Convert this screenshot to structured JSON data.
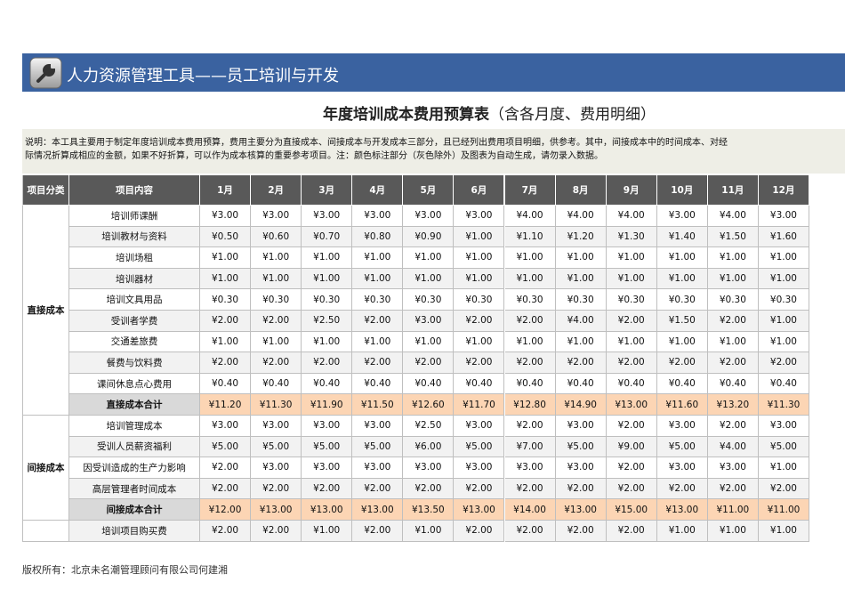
{
  "header": {
    "title": "人力资源管理工具——员工培训与开发"
  },
  "subtitle": {
    "main": "年度培训成本费用预算表",
    "note": "（含各月度、费用明细）"
  },
  "description": [
    "说明：本工具主要用于制定年度培训成本费用预算，费用主要分为直接成本、间接成本与开发成本三部分，且已经列出费用项目明细，供参考。其中，间接成本中的时间成本、对经",
    "际情况折算成相应的金额，如果不好折算，可以作为成本核算的重要参考项目。注：颜色标注部分（灰色除外）及图表为自动生成，请勿录入数据。"
  ],
  "table": {
    "headers": [
      "项目分类",
      "项目内容",
      "1月",
      "2月",
      "3月",
      "4月",
      "5月",
      "6月",
      "7月",
      "8月",
      "9月",
      "10月",
      "11月",
      "12月"
    ],
    "groups": [
      {
        "category": "直接成本",
        "rows": [
          {
            "item": "培训师课酬",
            "values": [
              "¥3.00",
              "¥3.00",
              "¥3.00",
              "¥3.00",
              "¥3.00",
              "¥3.00",
              "¥4.00",
              "¥4.00",
              "¥4.00",
              "¥3.00",
              "¥4.00",
              "¥3.00"
            ]
          },
          {
            "item": "培训教材与资料",
            "values": [
              "¥0.50",
              "¥0.60",
              "¥0.70",
              "¥0.80",
              "¥0.90",
              "¥1.00",
              "¥1.10",
              "¥1.20",
              "¥1.30",
              "¥1.40",
              "¥1.50",
              "¥1.60"
            ]
          },
          {
            "item": "培训场租",
            "values": [
              "¥1.00",
              "¥1.00",
              "¥1.00",
              "¥1.00",
              "¥1.00",
              "¥1.00",
              "¥1.00",
              "¥1.00",
              "¥1.00",
              "¥1.00",
              "¥1.00",
              "¥1.00"
            ]
          },
          {
            "item": "培训器材",
            "values": [
              "¥1.00",
              "¥1.00",
              "¥1.00",
              "¥1.00",
              "¥1.00",
              "¥1.00",
              "¥1.00",
              "¥1.00",
              "¥1.00",
              "¥1.00",
              "¥1.00",
              "¥1.00"
            ]
          },
          {
            "item": "培训文具用品",
            "values": [
              "¥0.30",
              "¥0.30",
              "¥0.30",
              "¥0.30",
              "¥0.30",
              "¥0.30",
              "¥0.30",
              "¥0.30",
              "¥0.30",
              "¥0.30",
              "¥0.30",
              "¥0.30"
            ]
          },
          {
            "item": "受训者学费",
            "values": [
              "¥2.00",
              "¥2.00",
              "¥2.50",
              "¥2.00",
              "¥3.00",
              "¥2.00",
              "¥2.00",
              "¥4.00",
              "¥2.00",
              "¥1.50",
              "¥2.00",
              "¥1.00"
            ]
          },
          {
            "item": "交通差旅费",
            "values": [
              "¥1.00",
              "¥1.00",
              "¥1.00",
              "¥1.00",
              "¥1.00",
              "¥1.00",
              "¥1.00",
              "¥1.00",
              "¥1.00",
              "¥1.00",
              "¥1.00",
              "¥1.00"
            ]
          },
          {
            "item": "餐费与饮料费",
            "values": [
              "¥2.00",
              "¥2.00",
              "¥2.00",
              "¥2.00",
              "¥2.00",
              "¥2.00",
              "¥2.00",
              "¥2.00",
              "¥2.00",
              "¥2.00",
              "¥2.00",
              "¥2.00"
            ]
          },
          {
            "item": "课间休息点心费用",
            "values": [
              "¥0.40",
              "¥0.40",
              "¥0.40",
              "¥0.40",
              "¥0.40",
              "¥0.40",
              "¥0.40",
              "¥0.40",
              "¥0.40",
              "¥0.40",
              "¥0.40",
              "¥0.40"
            ]
          }
        ],
        "total": {
          "item": "直接成本合计",
          "values": [
            "¥11.20",
            "¥11.30",
            "¥11.90",
            "¥11.50",
            "¥12.60",
            "¥11.70",
            "¥12.80",
            "¥14.90",
            "¥13.00",
            "¥11.60",
            "¥13.20",
            "¥11.30"
          ]
        }
      },
      {
        "category": "间接成本",
        "rows": [
          {
            "item": "培训管理成本",
            "values": [
              "¥3.00",
              "¥3.00",
              "¥3.00",
              "¥3.00",
              "¥2.50",
              "¥3.00",
              "¥2.00",
              "¥3.00",
              "¥2.00",
              "¥3.00",
              "¥2.00",
              "¥3.00"
            ]
          },
          {
            "item": "受训人员薪资福利",
            "values": [
              "¥5.00",
              "¥5.00",
              "¥5.00",
              "¥5.00",
              "¥6.00",
              "¥5.00",
              "¥7.00",
              "¥5.00",
              "¥9.00",
              "¥5.00",
              "¥4.00",
              "¥5.00"
            ]
          },
          {
            "item": "因受训造成的生产力影响",
            "values": [
              "¥2.00",
              "¥3.00",
              "¥3.00",
              "¥3.00",
              "¥3.00",
              "¥3.00",
              "¥3.00",
              "¥3.00",
              "¥2.00",
              "¥3.00",
              "¥3.00",
              "¥1.00"
            ]
          },
          {
            "item": "高层管理者时间成本",
            "values": [
              "¥2.00",
              "¥2.00",
              "¥2.00",
              "¥2.00",
              "¥2.00",
              "¥2.00",
              "¥2.00",
              "¥2.00",
              "¥2.00",
              "¥2.00",
              "¥2.00",
              "¥2.00"
            ]
          }
        ],
        "total": {
          "item": "间接成本合计",
          "values": [
            "¥12.00",
            "¥13.00",
            "¥13.00",
            "¥13.00",
            "¥13.50",
            "¥13.00",
            "¥14.00",
            "¥13.00",
            "¥15.00",
            "¥13.00",
            "¥11.00",
            "¥11.00"
          ]
        }
      },
      {
        "rows": [
          {
            "item": "培训项目购买费",
            "values": [
              "¥2.00",
              "¥2.00",
              "¥1.00",
              "¥2.00",
              "¥1.00",
              "¥2.00",
              "¥2.00",
              "¥2.00",
              "¥2.00",
              "¥1.00",
              "¥1.00",
              "¥1.00"
            ]
          }
        ]
      }
    ]
  },
  "footer": "版权所有：北京未名潮管理顾问有限公司何建湘"
}
